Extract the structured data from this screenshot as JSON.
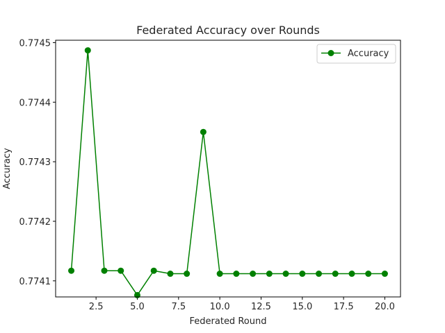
{
  "chart_data": {
    "type": "line",
    "title": "Federated Accuracy over Rounds",
    "xlabel": "Federated Round",
    "ylabel": "Accuracy",
    "xlim": [
      0.05,
      20.95
    ],
    "ylim": [
      0.774073,
      0.774504
    ],
    "xticks": [
      2.5,
      5.0,
      7.5,
      10.0,
      12.5,
      15.0,
      17.5,
      20.0
    ],
    "xtick_labels": [
      "2.5",
      "5.0",
      "7.5",
      "10.0",
      "12.5",
      "15.0",
      "17.5",
      "20.0"
    ],
    "yticks": [
      0.7741,
      0.7742,
      0.7743,
      0.7744,
      0.7745
    ],
    "ytick_labels": [
      "0.7741",
      "0.7742",
      "0.7743",
      "0.7744",
      "0.7745"
    ],
    "grid": false,
    "legend_position": "top-right",
    "series": [
      {
        "name": "Accuracy",
        "color": "#008000",
        "marker": "circle",
        "x": [
          1,
          2,
          3,
          4,
          5,
          6,
          7,
          8,
          9,
          10,
          11,
          12,
          13,
          14,
          15,
          16,
          17,
          18,
          19,
          20
        ],
        "y": [
          0.774117,
          0.774487,
          0.774117,
          0.774117,
          0.774076,
          0.774117,
          0.774112,
          0.774112,
          0.77435,
          0.774112,
          0.774112,
          0.774112,
          0.774112,
          0.774112,
          0.774112,
          0.774112,
          0.774112,
          0.774112,
          0.774112,
          0.774112
        ]
      }
    ]
  }
}
